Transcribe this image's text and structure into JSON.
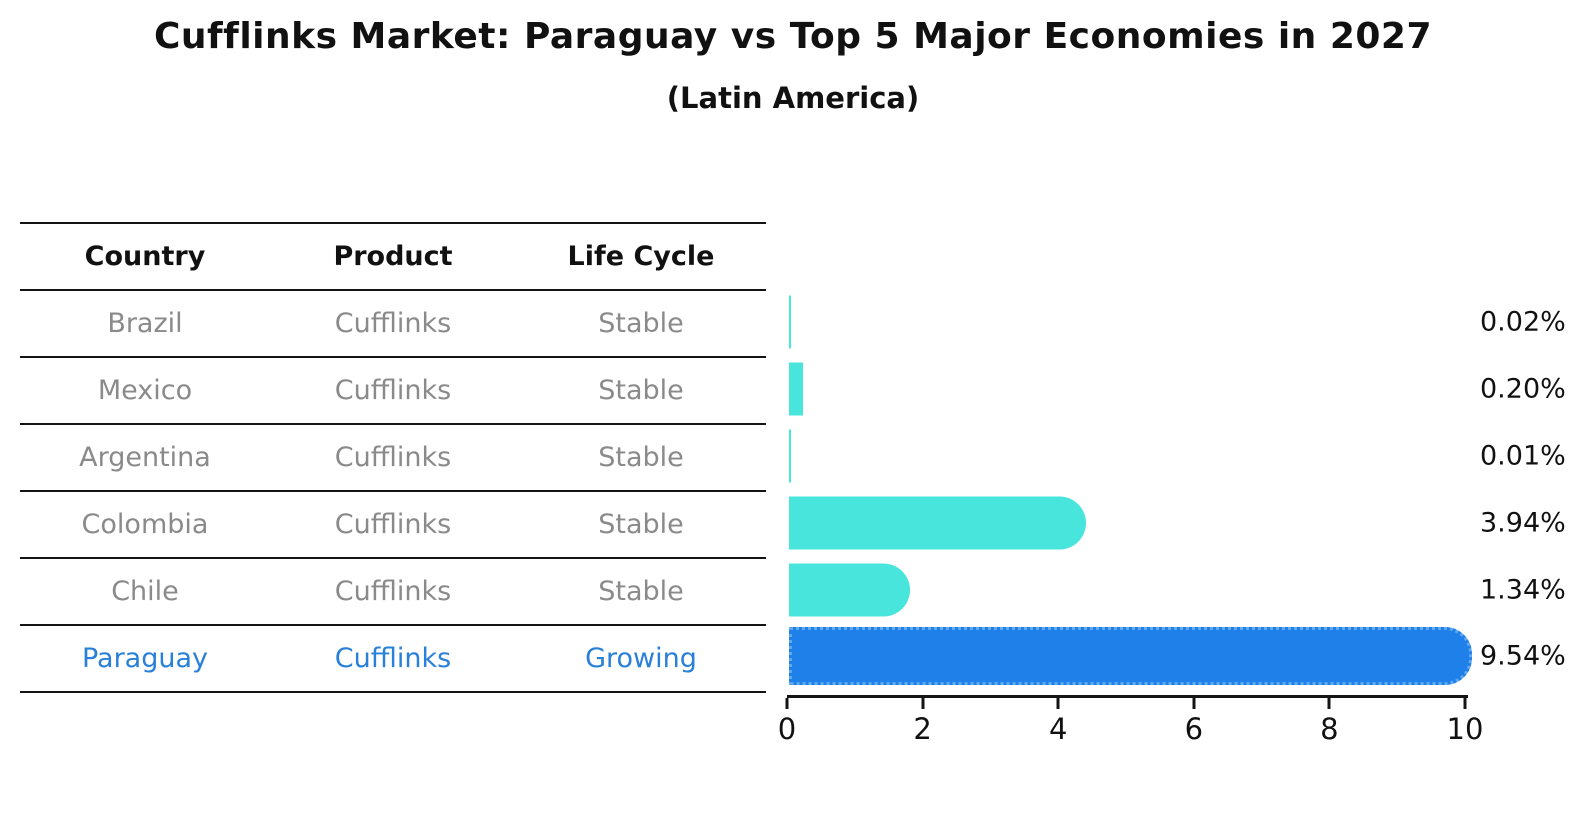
{
  "title": "Cufflinks Market: Paraguay vs Top 5 Major Economies in 2027",
  "subtitle": "(Latin America)",
  "table": {
    "headers": {
      "country": "Country",
      "product": "Product",
      "life_cycle": "Life Cycle"
    },
    "rows": [
      {
        "country": "Brazil",
        "product": "Cufflinks",
        "life_cycle": "Stable",
        "highlight": false
      },
      {
        "country": "Mexico",
        "product": "Cufflinks",
        "life_cycle": "Stable",
        "highlight": false
      },
      {
        "country": "Argentina",
        "product": "Cufflinks",
        "life_cycle": "Stable",
        "highlight": false
      },
      {
        "country": "Colombia",
        "product": "Cufflinks",
        "life_cycle": "Stable",
        "highlight": false
      },
      {
        "country": "Chile",
        "product": "Cufflinks",
        "life_cycle": "Stable",
        "highlight": false
      },
      {
        "country": "Paraguay",
        "product": "Cufflinks",
        "life_cycle": "Growing",
        "highlight": true
      }
    ]
  },
  "chart_data": {
    "type": "bar",
    "orientation": "horizontal",
    "title": "Cufflinks Market: Paraguay vs Top 5 Major Economies in 2027",
    "subtitle": "(Latin America)",
    "categories": [
      "Brazil",
      "Mexico",
      "Argentina",
      "Colombia",
      "Chile",
      "Paraguay"
    ],
    "values": [
      0.02,
      0.2,
      0.01,
      3.94,
      1.34,
      9.54
    ],
    "value_labels": [
      "0.02%",
      "0.20%",
      "0.01%",
      "3.94%",
      "1.34%",
      "9.54%"
    ],
    "xlim": [
      0,
      10
    ],
    "x_ticks": [
      "0",
      "2",
      "4",
      "6",
      "8",
      "10"
    ],
    "grid": false,
    "legend": false,
    "highlight_index": 5,
    "bar_color_default": "#48E5DC",
    "bar_color_highlight": "#1E80E8"
  },
  "colors": {
    "header_text": "#111111",
    "row_text": "#8a8a8a",
    "highlight_text": "#2980d9",
    "table_line": "#141414",
    "bar_default": "#48E5DC",
    "bar_highlight": "#1E80E8"
  }
}
